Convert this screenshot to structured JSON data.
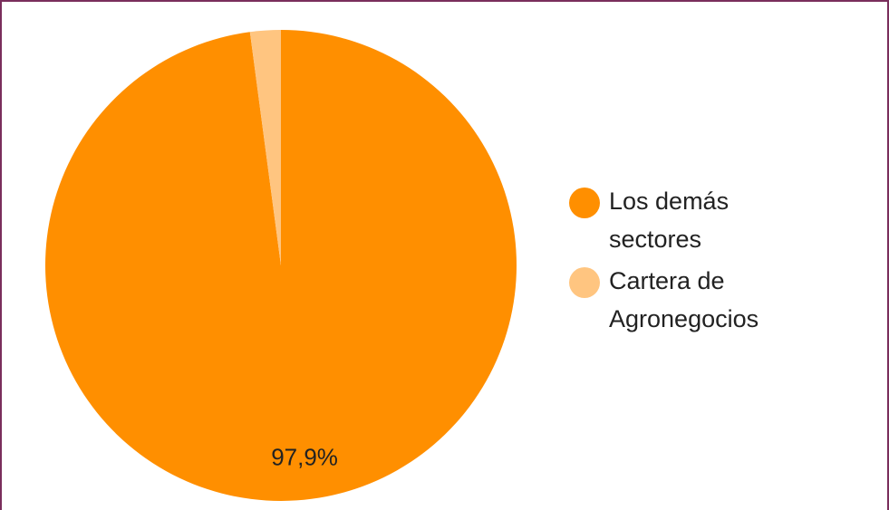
{
  "chart_data": {
    "type": "pie",
    "categories": [
      "Los demás sectores",
      "Cartera de Agronegocios"
    ],
    "values": [
      97.9,
      2.1
    ],
    "colors": [
      "#ff8f00",
      "#ffc580"
    ],
    "data_labels": [
      "97,9%",
      ""
    ],
    "legend_position": "right",
    "start_angle": "top, clockwise"
  },
  "legend": {
    "items": [
      {
        "label": "Los demás sectores",
        "color": "#ff8f00"
      },
      {
        "label": "Cartera de Agronegocios",
        "color": "#ffc580"
      }
    ]
  },
  "frame_color": "#7a2e5c"
}
